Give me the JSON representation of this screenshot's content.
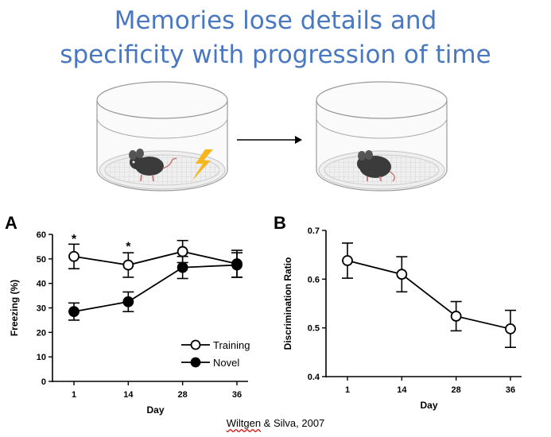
{
  "title": {
    "line1": "Memories lose details and",
    "line2": "specificity with progression of time"
  },
  "citation": {
    "author": "Wiltgen",
    "rest": " & Silva, 2007"
  },
  "colors": {
    "title": "#4A78C0",
    "bolt": "#F5B61E",
    "mouse": "#3b3b3b"
  },
  "chart_data": [
    {
      "panel": "A",
      "type": "line",
      "categories": [
        "1",
        "14",
        "28",
        "36"
      ],
      "xlabel": "Day",
      "ylabel": "Freezing (%)",
      "ylim": [
        0,
        60
      ],
      "yticks": [
        "0",
        "10",
        "20",
        "30",
        "40",
        "50",
        "60"
      ],
      "series": [
        {
          "name": "Training",
          "marker": "open-circle",
          "values": [
            51,
            47.5,
            53,
            48
          ],
          "errors": [
            5,
            5,
            4.5,
            5.5
          ]
        },
        {
          "name": "Novel",
          "marker": "filled-circle",
          "values": [
            28.5,
            32.5,
            46.5,
            47.5
          ],
          "errors": [
            3.5,
            4,
            4.5,
            5
          ]
        }
      ],
      "annotations": [
        {
          "text": "*",
          "category": "1",
          "y": 59
        },
        {
          "text": "*",
          "category": "14",
          "y": 56
        }
      ],
      "legend_position": "bottom-right"
    },
    {
      "panel": "B",
      "type": "line",
      "categories": [
        "1",
        "14",
        "28",
        "36"
      ],
      "xlabel": "Day",
      "ylabel": "Discrimination Ratio",
      "ylim": [
        0.4,
        0.7
      ],
      "yticks": [
        "0.4",
        "0.5",
        "0.6",
        "0.7"
      ],
      "series": [
        {
          "marker": "open-circle",
          "values": [
            0.638,
            0.61,
            0.524,
            0.498
          ],
          "errors": [
            0.036,
            0.036,
            0.03,
            0.038
          ]
        }
      ]
    }
  ]
}
